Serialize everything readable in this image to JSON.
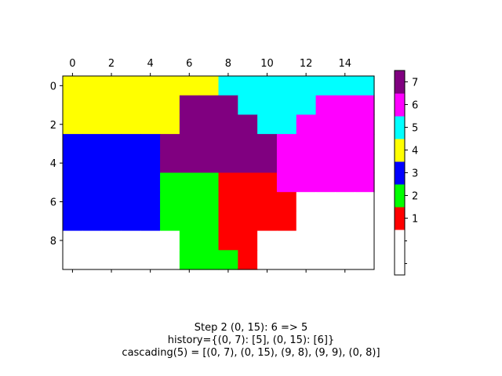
{
  "chart_data": {
    "type": "heatmap",
    "grid_rows": 10,
    "grid_cols": 16,
    "x_ticks": [
      0,
      2,
      4,
      6,
      8,
      10,
      12,
      14
    ],
    "y_ticks": [
      0,
      2,
      4,
      6,
      8
    ],
    "x_axis_position": "top",
    "colormap": {
      "0": "#ffffff",
      "1": "#ff0000",
      "2": "#00ff00",
      "3": "#0000ff",
      "4": "#ffff00",
      "5": "#00ffff",
      "6": "#ff00ff",
      "7": "#800080"
    },
    "colorbar_ticks": [
      1,
      2,
      3,
      4,
      5,
      6,
      7
    ],
    "values": [
      [
        4,
        4,
        4,
        4,
        4,
        4,
        4,
        4,
        5,
        5,
        5,
        5,
        5,
        5,
        5,
        5
      ],
      [
        4,
        4,
        4,
        4,
        4,
        4,
        7,
        7,
        7,
        5,
        5,
        5,
        5,
        6,
        6,
        6
      ],
      [
        4,
        4,
        4,
        4,
        4,
        4,
        7,
        7,
        7,
        7,
        5,
        5,
        6,
        6,
        6,
        6
      ],
      [
        3,
        3,
        3,
        3,
        3,
        7,
        7,
        7,
        7,
        7,
        7,
        6,
        6,
        6,
        6,
        6
      ],
      [
        3,
        3,
        3,
        3,
        3,
        7,
        7,
        7,
        7,
        7,
        7,
        6,
        6,
        6,
        6,
        6
      ],
      [
        3,
        3,
        3,
        3,
        3,
        2,
        2,
        2,
        1,
        1,
        1,
        6,
        6,
        6,
        6,
        6
      ],
      [
        3,
        3,
        3,
        3,
        3,
        2,
        2,
        2,
        1,
        1,
        1,
        1,
        0,
        0,
        0,
        0
      ],
      [
        3,
        3,
        3,
        3,
        3,
        2,
        2,
        2,
        1,
        1,
        1,
        1,
        0,
        0,
        0,
        0
      ],
      [
        0,
        0,
        0,
        0,
        0,
        0,
        2,
        2,
        1,
        1,
        0,
        0,
        0,
        0,
        0,
        0
      ],
      [
        0,
        0,
        0,
        0,
        0,
        0,
        2,
        2,
        2,
        1,
        0,
        0,
        0,
        0,
        0,
        0
      ]
    ],
    "caption_lines": [
      "Step 2  (0, 15): 6 => 5",
      "history={(0, 7): [5], (0, 15): [6]}",
      "cascading(5) = [(0, 7), (0, 15), (9, 8), (9, 9), (0, 8)]"
    ]
  }
}
